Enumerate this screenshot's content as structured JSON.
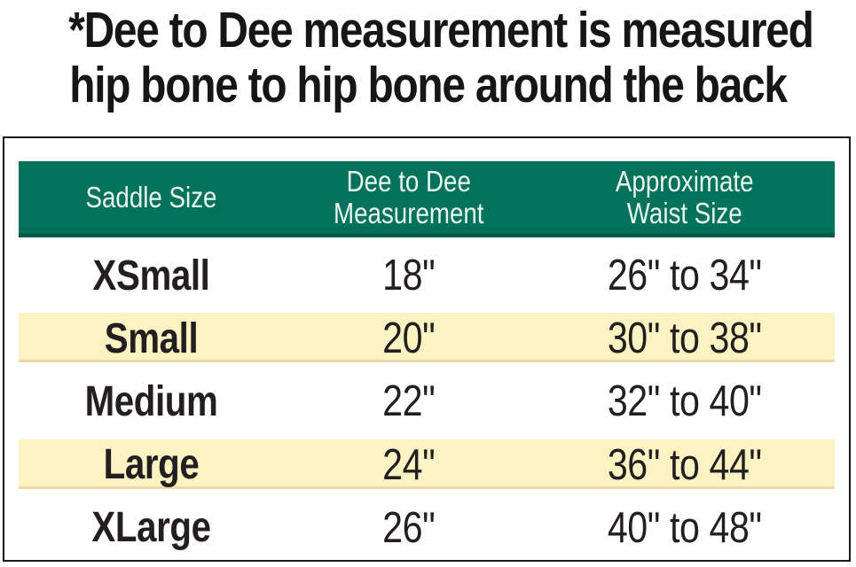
{
  "title_lines": {
    "line1": "*Dee to Dee measurement is measured",
    "line2": "hip bone to hip bone around the back"
  },
  "header_lines": [
    [
      "Saddle Size"
    ],
    [
      "Dee to Dee",
      "Measurement"
    ],
    [
      "Approximate",
      "Waist Size"
    ]
  ],
  "chart_data": {
    "type": "table",
    "title": "*Dee to Dee measurement is measured hip bone to hip bone around the back",
    "columns": [
      "Saddle Size",
      "Dee to Dee Measurement",
      "Approximate Waist Size"
    ],
    "rows": [
      [
        "XSmall",
        "18\"",
        "26\" to 34\""
      ],
      [
        "Small",
        "20\"",
        "30\" to 38\""
      ],
      [
        "Medium",
        "22\"",
        "32\" to 40\""
      ],
      [
        "Large",
        "24\"",
        "36\" to 44\""
      ],
      [
        "XLarge",
        "26\"",
        "40\" to 48\""
      ]
    ],
    "highlighted_rows": [
      "Small",
      "Large"
    ],
    "layout": {
      "header_style": "solid-green-bar",
      "zebra": "alternate-yellow",
      "grid": "off"
    }
  },
  "colors": {
    "header_bg": "#02735A",
    "header_edge": "#015C47",
    "header_text": "#E9F6EF",
    "row_highlight": "#FDF2C1",
    "row_highlight_edge": "#E9DAA8",
    "text": "#231F20",
    "border": "#1A1A1A",
    "background": "#FFFFFF"
  }
}
